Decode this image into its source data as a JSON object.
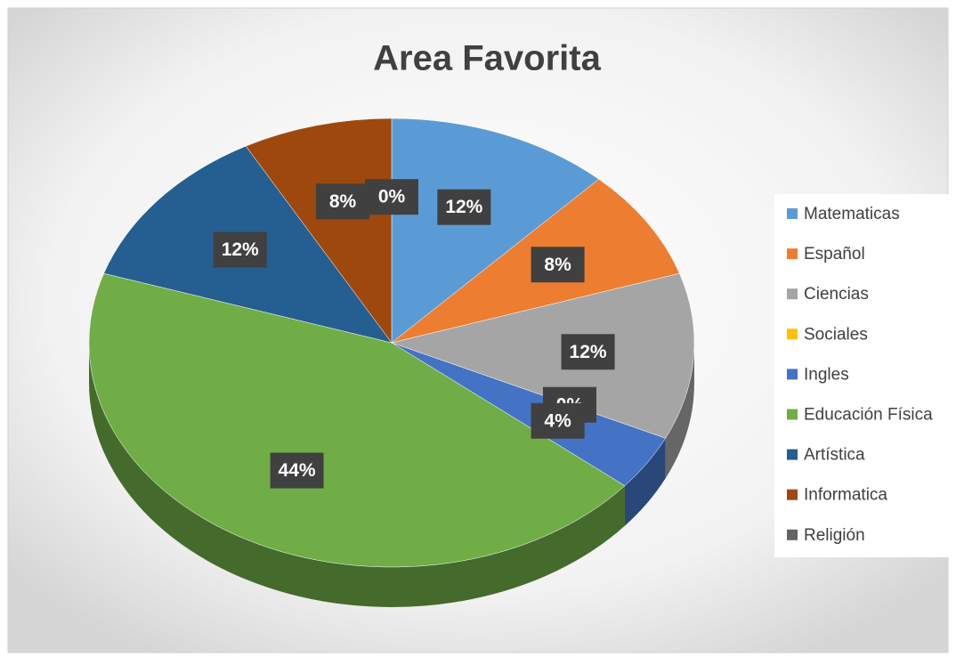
{
  "chart_data": {
    "type": "pie",
    "title": "Area Favorita",
    "categories": [
      "Matematicas",
      "Español",
      "Ciencias",
      "Sociales",
      "Ingles",
      "Educación Física",
      "Artística",
      "Informatica",
      "Religión"
    ],
    "values": [
      12,
      8,
      12,
      0,
      4,
      44,
      12,
      8,
      0
    ],
    "value_labels": [
      "12%",
      "8%",
      "12%",
      "0%",
      "4%",
      "44%",
      "12%",
      "8%",
      "0%"
    ],
    "colors": [
      "#5b9bd5",
      "#ed7d31",
      "#a5a5a5",
      "#ffc000",
      "#4472c4",
      "#70ad47",
      "#255e91",
      "#9e480e",
      "#636363"
    ],
    "legend": "right"
  }
}
